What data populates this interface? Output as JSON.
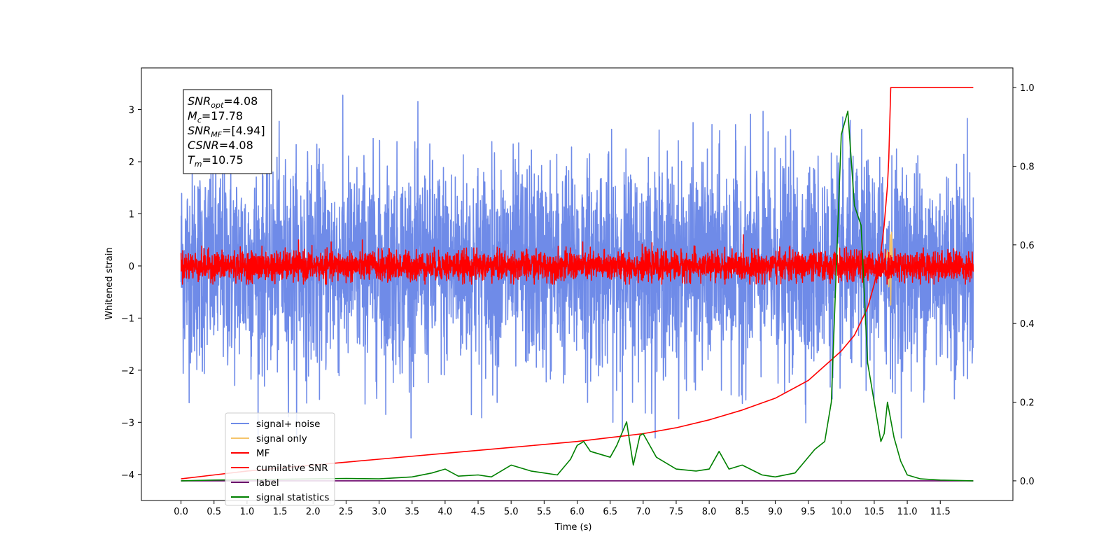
{
  "chart_data": {
    "type": "line",
    "xlabel": "Time (s)",
    "ylabel": "Whitened strain",
    "xlim": [
      -0.6,
      12.6
    ],
    "ylim": [
      -4.5,
      3.8
    ],
    "y2lim": [
      -0.05,
      1.05
    ],
    "x_ticks": [
      "0.0",
      "0.5",
      "1.0",
      "1.5",
      "2.0",
      "2.5",
      "3.0",
      "3.5",
      "4.0",
      "4.5",
      "5.0",
      "5.5",
      "6.0",
      "6.5",
      "7.0",
      "7.5",
      "8.0",
      "8.5",
      "9.0",
      "9.5",
      "10.0",
      "10.5",
      "11.0",
      "11.5"
    ],
    "y_ticks": [
      "3",
      "2",
      "1",
      "0",
      "−1",
      "−2",
      "−3",
      "−4"
    ],
    "y2_ticks": [
      "1.0",
      "0.8",
      "0.6",
      "0.4",
      "0.2",
      "0.0"
    ],
    "annotation": {
      "lines": [
        {
          "name": "SNR",
          "sub": "opt",
          "value": "=4.08"
        },
        {
          "name": "M",
          "sub": "c",
          "value": "=17.78"
        },
        {
          "name": "SNR",
          "sub": "MF",
          "value": "=[4.94]"
        },
        {
          "name": "CSNR",
          "sub": "",
          "value": "=4.08"
        },
        {
          "name": "T",
          "sub": "m",
          "value": "=10.75"
        }
      ]
    },
    "legend": {
      "position": "lower-left",
      "entries": [
        "signal+ noise",
        "signal only",
        "MF",
        "cumilative SNR",
        "label",
        "signal statistics"
      ]
    },
    "series": [
      {
        "name": "signal+ noise",
        "axis": "left",
        "color": "#6f8be8",
        "noise": {
          "x_start": 0.0,
          "x_end": 12.0,
          "center": 0.0,
          "sigma": 1.0,
          "max": 3.5,
          "min": -3.3
        }
      },
      {
        "name": "signal only",
        "axis": "left",
        "color": "#f5c46a",
        "x": [
          10.55,
          10.6,
          10.65,
          10.7,
          10.72,
          10.74,
          10.75,
          10.76,
          10.78,
          10.8
        ],
        "y": [
          0.0,
          0.05,
          -0.1,
          0.3,
          -0.4,
          0.6,
          -0.75,
          0.65,
          0.0,
          0.0
        ]
      },
      {
        "name": "MF",
        "axis": "left",
        "color": "#ff0000",
        "noise": {
          "x_start": 0.0,
          "x_end": 12.0,
          "center": 0.0,
          "sigma": 0.14,
          "max": 0.85,
          "min": -0.35
        }
      },
      {
        "name": "cumilative SNR",
        "axis": "right",
        "color": "#ff0000",
        "x": [
          0.0,
          0.5,
          1.0,
          2.0,
          3.0,
          4.0,
          5.0,
          6.0,
          6.5,
          7.0,
          7.5,
          8.0,
          8.5,
          9.0,
          9.5,
          10.0,
          10.2,
          10.4,
          10.5,
          10.6,
          10.65,
          10.7,
          10.72,
          10.75,
          12.0
        ],
        "y": [
          0.005,
          0.015,
          0.025,
          0.04,
          0.055,
          0.07,
          0.085,
          0.1,
          0.11,
          0.12,
          0.135,
          0.155,
          0.18,
          0.21,
          0.255,
          0.33,
          0.37,
          0.44,
          0.5,
          0.58,
          0.65,
          0.75,
          0.82,
          1.0,
          1.0
        ]
      },
      {
        "name": "label",
        "axis": "right",
        "color": "#6a006a",
        "x": [
          0.0,
          12.0
        ],
        "y": [
          0.0,
          0.0
        ]
      },
      {
        "name": "signal statistics",
        "axis": "right",
        "color": "#008000",
        "x": [
          0.0,
          0.5,
          1.0,
          1.5,
          2.0,
          2.5,
          3.0,
          3.5,
          3.8,
          4.0,
          4.2,
          4.5,
          4.7,
          5.0,
          5.3,
          5.5,
          5.7,
          5.9,
          6.0,
          6.1,
          6.2,
          6.5,
          6.6,
          6.75,
          6.85,
          6.95,
          7.0,
          7.2,
          7.5,
          7.8,
          8.0,
          8.15,
          8.3,
          8.5,
          8.8,
          9.0,
          9.3,
          9.6,
          9.75,
          9.85,
          10.0,
          10.1,
          10.2,
          10.3,
          10.4,
          10.5,
          10.6,
          10.65,
          10.7,
          10.8,
          10.9,
          11.0,
          11.2,
          11.5,
          12.0
        ],
        "y": [
          0.0,
          0.002,
          0.003,
          0.004,
          0.005,
          0.006,
          0.005,
          0.01,
          0.02,
          0.03,
          0.012,
          0.015,
          0.01,
          0.04,
          0.025,
          0.02,
          0.015,
          0.055,
          0.09,
          0.1,
          0.075,
          0.06,
          0.09,
          0.15,
          0.04,
          0.115,
          0.12,
          0.06,
          0.03,
          0.025,
          0.03,
          0.075,
          0.03,
          0.04,
          0.015,
          0.01,
          0.02,
          0.08,
          0.1,
          0.2,
          0.88,
          0.94,
          0.7,
          0.65,
          0.3,
          0.2,
          0.1,
          0.12,
          0.2,
          0.11,
          0.05,
          0.015,
          0.005,
          0.002,
          0.0
        ]
      }
    ]
  }
}
